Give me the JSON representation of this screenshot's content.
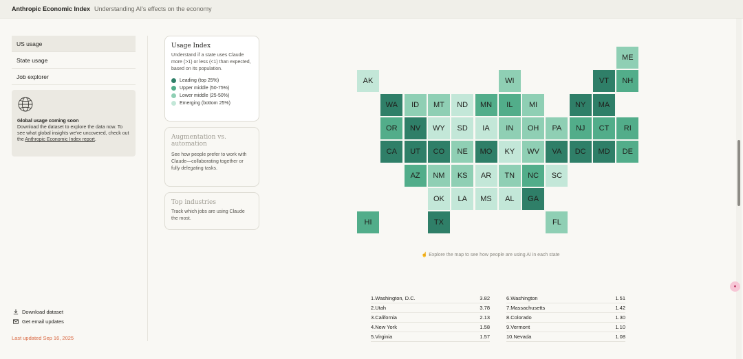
{
  "header": {
    "brand": "Anthropic Economic Index",
    "subtitle": "Understanding AI's effects on the economy"
  },
  "sidebar": {
    "items": [
      {
        "label": "US usage",
        "active": true
      },
      {
        "label": "State usage",
        "active": false
      },
      {
        "label": "Job explorer",
        "active": false
      }
    ],
    "global_card": {
      "icon": "globe-icon",
      "title": "Global usage coming soon",
      "text": "Download the dataset to explore the data now. To see what global insights we've uncovered, check out the",
      "link": "Anthropic Economic Index report",
      "link_suffix": "."
    },
    "download_label": "Download dataset",
    "email_label": "Get email updates",
    "updated": "Last updated Sep 16, 2025"
  },
  "cards": {
    "usage_index": {
      "title": "Usage Index",
      "text": "Understand if a state uses Claude more (>1) or less (<1) than expected, based on its population.",
      "legend": [
        {
          "label": "Leading (top 25%)",
          "color": "#2f7f68"
        },
        {
          "label": "Upper middle (50-75%)",
          "color": "#52ad8a"
        },
        {
          "label": "Lower middle (25-50%)",
          "color": "#8fcfb4"
        },
        {
          "label": "Emerging (bottom 25%)",
          "color": "#c3e7d8"
        }
      ]
    },
    "augmentation": {
      "title": "Augmentation vs. automation",
      "text": "See how people prefer to work with Claude—collaborating together or fully delegating tasks."
    },
    "industries": {
      "title": "Top industries",
      "text": "Track which jobs are using Claude the most."
    }
  },
  "tier_colors": [
    "#2f7f68",
    "#52ad8a",
    "#8fcfb4",
    "#c3e7d8"
  ],
  "map": {
    "states": [
      {
        "code": "ME",
        "tier": 2
      },
      {
        "code": "AK",
        "tier": 3
      },
      {
        "code": "WI",
        "tier": 2
      },
      {
        "code": "VT",
        "tier": 0
      },
      {
        "code": "NH",
        "tier": 1
      },
      {
        "code": "WA",
        "tier": 0
      },
      {
        "code": "ID",
        "tier": 2
      },
      {
        "code": "MT",
        "tier": 2
      },
      {
        "code": "ND",
        "tier": 3
      },
      {
        "code": "MN",
        "tier": 1
      },
      {
        "code": "IL",
        "tier": 1
      },
      {
        "code": "MI",
        "tier": 2
      },
      {
        "code": "NY",
        "tier": 0
      },
      {
        "code": "MA",
        "tier": 0
      },
      {
        "code": "OR",
        "tier": 1
      },
      {
        "code": "NV",
        "tier": 0
      },
      {
        "code": "WY",
        "tier": 3
      },
      {
        "code": "SD",
        "tier": 3
      },
      {
        "code": "IA",
        "tier": 3
      },
      {
        "code": "IN",
        "tier": 2
      },
      {
        "code": "OH",
        "tier": 2
      },
      {
        "code": "PA",
        "tier": 2
      },
      {
        "code": "NJ",
        "tier": 1
      },
      {
        "code": "CT",
        "tier": 1
      },
      {
        "code": "RI",
        "tier": 1
      },
      {
        "code": "CA",
        "tier": 0
      },
      {
        "code": "UT",
        "tier": 0
      },
      {
        "code": "CO",
        "tier": 0
      },
      {
        "code": "NE",
        "tier": 2
      },
      {
        "code": "MO",
        "tier": 0
      },
      {
        "code": "KY",
        "tier": 3
      },
      {
        "code": "WV",
        "tier": 2
      },
      {
        "code": "VA",
        "tier": 0
      },
      {
        "code": "DC",
        "tier": 0
      },
      {
        "code": "MD",
        "tier": 0
      },
      {
        "code": "DE",
        "tier": 1
      },
      {
        "code": "AZ",
        "tier": 1
      },
      {
        "code": "NM",
        "tier": 2
      },
      {
        "code": "KS",
        "tier": 2
      },
      {
        "code": "AR",
        "tier": 3
      },
      {
        "code": "TN",
        "tier": 2
      },
      {
        "code": "NC",
        "tier": 1
      },
      {
        "code": "SC",
        "tier": 3
      },
      {
        "code": "OK",
        "tier": 3
      },
      {
        "code": "LA",
        "tier": 3
      },
      {
        "code": "MS",
        "tier": 3
      },
      {
        "code": "AL",
        "tier": 3
      },
      {
        "code": "GA",
        "tier": 0
      },
      {
        "code": "HI",
        "tier": 1
      },
      {
        "code": "TX",
        "tier": 0
      },
      {
        "code": "FL",
        "tier": 2
      }
    ],
    "hint": "Explore the map to see how people are using AI in each state"
  },
  "rankings": [
    {
      "rank": "1.",
      "name": "Washington, D.C.",
      "value": "3.82"
    },
    {
      "rank": "2.",
      "name": "Utah",
      "value": "3.78"
    },
    {
      "rank": "3.",
      "name": "California",
      "value": "2.13"
    },
    {
      "rank": "4.",
      "name": "New York",
      "value": "1.58"
    },
    {
      "rank": "5.",
      "name": "Virginia",
      "value": "1.57"
    },
    {
      "rank": "6.",
      "name": "Washington",
      "value": "1.51"
    },
    {
      "rank": "7.",
      "name": "Massachusetts",
      "value": "1.42"
    },
    {
      "rank": "8.",
      "name": "Colorado",
      "value": "1.30"
    },
    {
      "rank": "9.",
      "name": "Vermont",
      "value": "1.10"
    },
    {
      "rank": "10.",
      "name": "Nevada",
      "value": "1.08"
    }
  ]
}
